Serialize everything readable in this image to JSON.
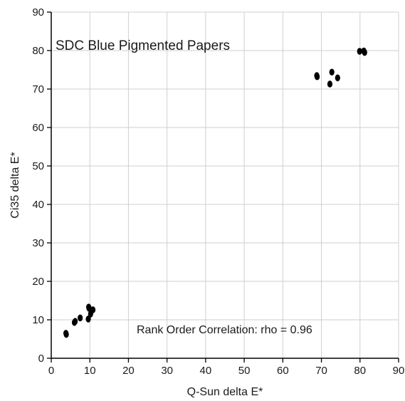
{
  "chart_data": {
    "type": "scatter",
    "title": "SDC Blue Pigmented Papers",
    "xlabel": "Q-Sun delta E*",
    "ylabel": "Ci35 delta E*",
    "xlim": [
      0,
      90
    ],
    "ylim": [
      0,
      90
    ],
    "xticks": [
      "0",
      "10",
      "20",
      "30",
      "40",
      "50",
      "60",
      "70",
      "80",
      "90"
    ],
    "yticks": [
      "0",
      "10",
      "20",
      "30",
      "40",
      "50",
      "60",
      "70",
      "80",
      "90"
    ],
    "grid": true,
    "annotation": "Rank Order Correlation: rho = 0.96",
    "point_color": "#000000",
    "points": [
      {
        "x": 3.8,
        "y": 6.5
      },
      {
        "x": 3.9,
        "y": 6.2
      },
      {
        "x": 6.0,
        "y": 9.3
      },
      {
        "x": 6.2,
        "y": 9.6
      },
      {
        "x": 7.5,
        "y": 10.5
      },
      {
        "x": 9.7,
        "y": 13.3
      },
      {
        "x": 9.8,
        "y": 13.0
      },
      {
        "x": 10.2,
        "y": 11.5
      },
      {
        "x": 10.8,
        "y": 12.6
      },
      {
        "x": 9.6,
        "y": 10.2
      },
      {
        "x": 68.8,
        "y": 73.5
      },
      {
        "x": 68.9,
        "y": 73.2
      },
      {
        "x": 72.7,
        "y": 74.4
      },
      {
        "x": 74.2,
        "y": 72.9
      },
      {
        "x": 72.2,
        "y": 71.3
      },
      {
        "x": 79.9,
        "y": 79.8
      },
      {
        "x": 81.0,
        "y": 79.9
      },
      {
        "x": 81.2,
        "y": 79.5
      }
    ]
  }
}
